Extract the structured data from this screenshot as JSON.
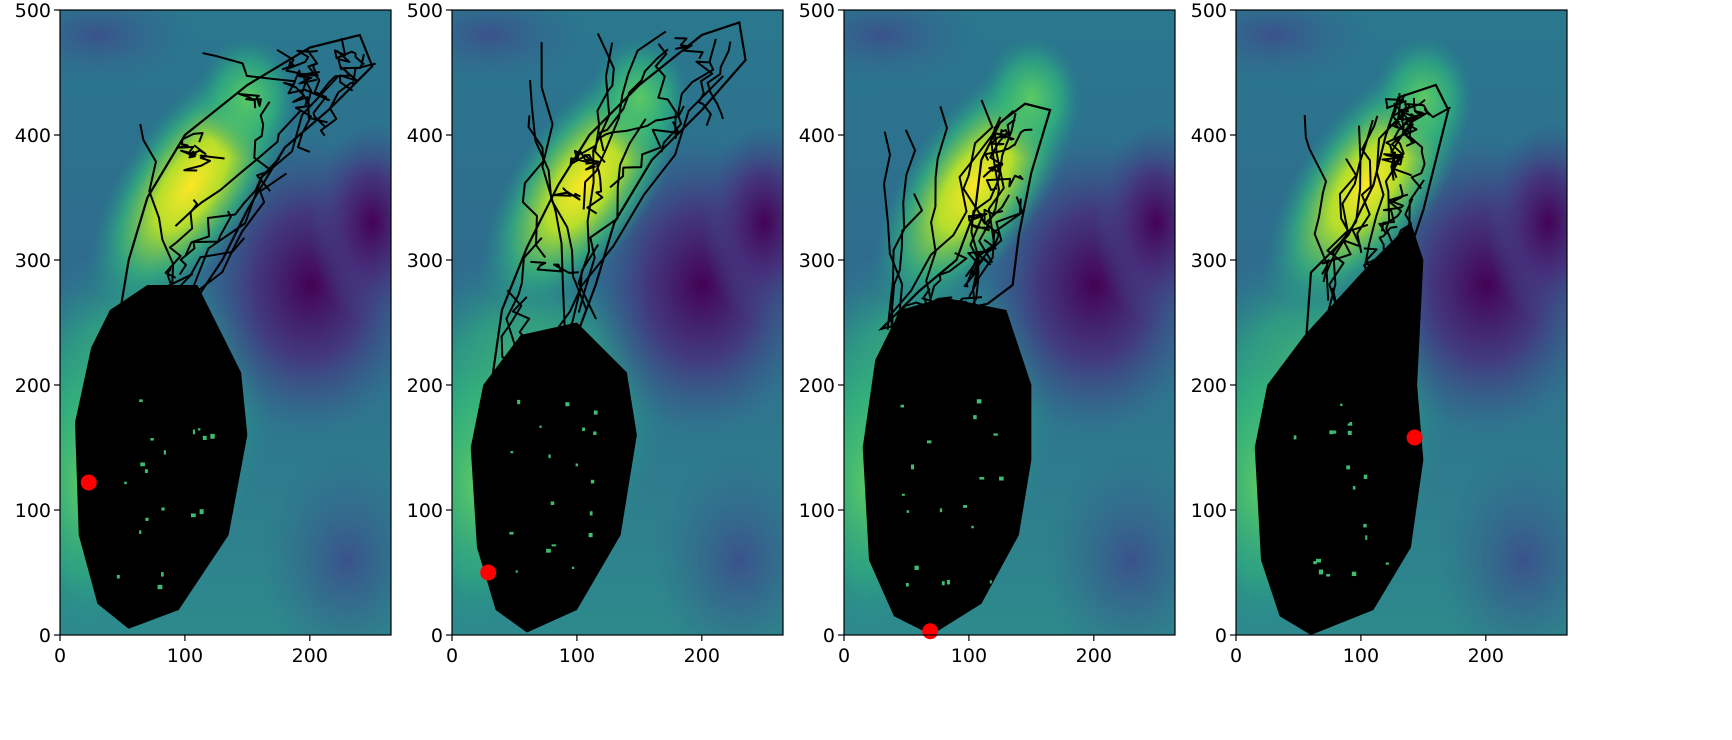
{
  "chart_data": [
    {
      "type": "scatter",
      "title": "",
      "xlabel": "",
      "ylabel": "",
      "xlim": [
        0,
        265
      ],
      "ylim": [
        0,
        500
      ],
      "xticks": [
        0,
        100,
        200
      ],
      "yticks": [
        0,
        100,
        200,
        300,
        400,
        500
      ],
      "xtick_labels": [
        "0",
        "100",
        "200"
      ],
      "ytick_labels": [
        "0",
        "100",
        "200",
        "300",
        "400",
        "500"
      ],
      "background": "viridis terrain heatmap",
      "trajectory_color": "#000000",
      "marker": {
        "x": 23,
        "y": 122,
        "color": "#ff0000"
      },
      "grid": false
    },
    {
      "type": "scatter",
      "title": "",
      "xlabel": "",
      "ylabel": "",
      "xlim": [
        0,
        265
      ],
      "ylim": [
        0,
        500
      ],
      "xticks": [
        0,
        100,
        200
      ],
      "yticks": [
        0,
        100,
        200,
        300,
        400,
        500
      ],
      "xtick_labels": [
        "0",
        "100",
        "200"
      ],
      "ytick_labels": [
        "0",
        "100",
        "200",
        "300",
        "400",
        "500"
      ],
      "background": "viridis terrain heatmap",
      "trajectory_color": "#000000",
      "marker": {
        "x": 29,
        "y": 50,
        "color": "#ff0000"
      },
      "grid": false
    },
    {
      "type": "scatter",
      "title": "",
      "xlabel": "",
      "ylabel": "",
      "xlim": [
        0,
        265
      ],
      "ylim": [
        0,
        500
      ],
      "xticks": [
        0,
        100,
        200
      ],
      "yticks": [
        0,
        100,
        200,
        300,
        400,
        500
      ],
      "xtick_labels": [
        "0",
        "100",
        "200"
      ],
      "ytick_labels": [
        "0",
        "100",
        "200",
        "300",
        "400",
        "500"
      ],
      "background": "viridis terrain heatmap",
      "trajectory_color": "#000000",
      "marker": {
        "x": 69,
        "y": 3,
        "color": "#ff0000"
      },
      "grid": false
    },
    {
      "type": "scatter",
      "title": "",
      "xlabel": "",
      "ylabel": "",
      "xlim": [
        0,
        265
      ],
      "ylim": [
        0,
        500
      ],
      "xticks": [
        0,
        100,
        200
      ],
      "yticks": [
        0,
        100,
        200,
        300,
        400,
        500
      ],
      "xtick_labels": [
        "0",
        "100",
        "200"
      ],
      "ytick_labels": [
        "0",
        "100",
        "200",
        "300",
        "400",
        "500"
      ],
      "background": "viridis terrain heatmap",
      "trajectory_color": "#000000",
      "marker": {
        "x": 143,
        "y": 158,
        "color": "#ff0000"
      },
      "grid": false
    }
  ]
}
